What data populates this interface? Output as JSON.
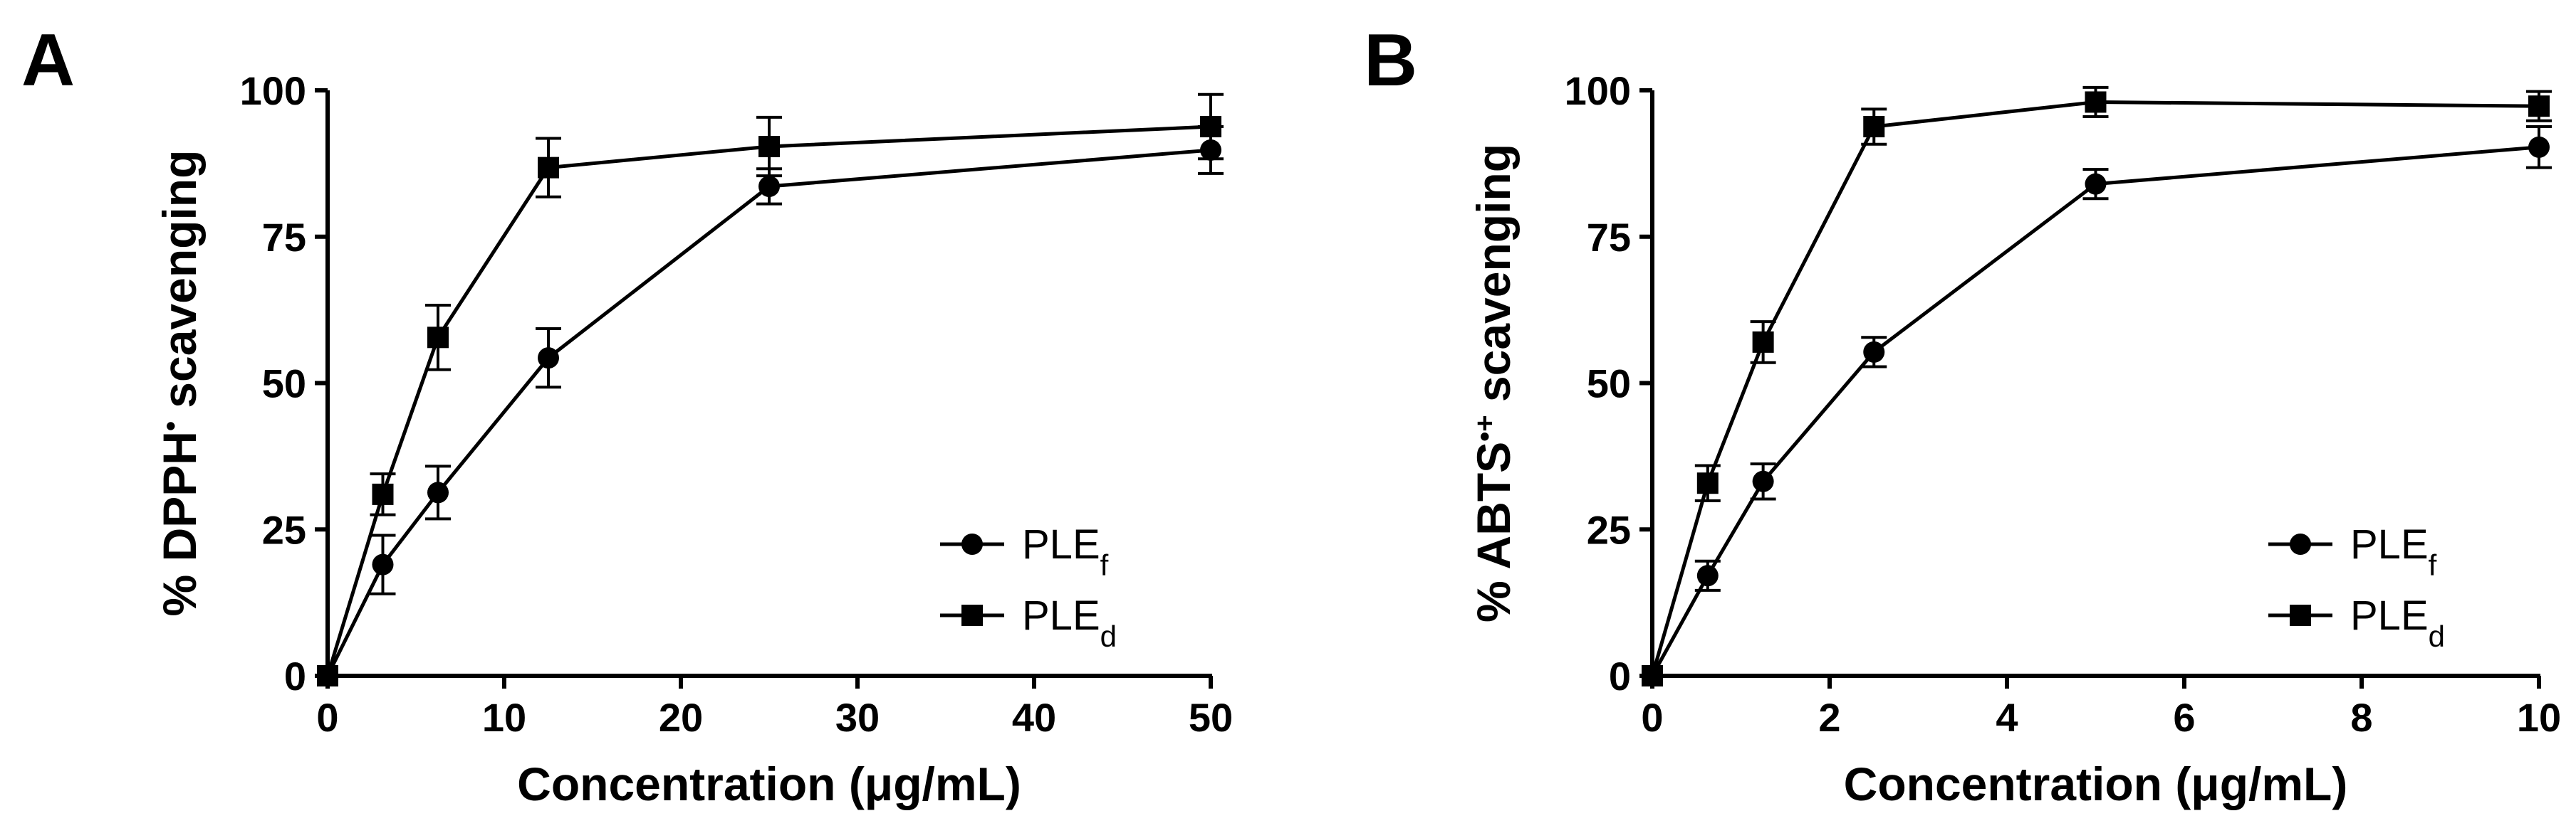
{
  "chart_data": [
    {
      "panel_label": "A",
      "type": "line",
      "xlabel": "Concentration (μg/mL)",
      "ylabel_main": "% DPPH",
      "ylabel_sup": "•",
      "ylabel_tail": " scavenging",
      "xlim": [
        0,
        50
      ],
      "ylim": [
        0,
        100
      ],
      "xticks": [
        0,
        10,
        20,
        30,
        40,
        50
      ],
      "yticks": [
        0,
        25,
        50,
        75,
        100
      ],
      "grid": false,
      "legend_position": "bottom-right",
      "series": [
        {
          "name": "PLEf",
          "name_base": "PLE",
          "name_sub": "f",
          "marker": "circle",
          "x": [
            0,
            3.125,
            6.25,
            12.5,
            25,
            50
          ],
          "y": [
            0,
            19,
            31.3,
            54.3,
            83.6,
            89.8
          ],
          "error": [
            0,
            5,
            4.5,
            5,
            3,
            4
          ]
        },
        {
          "name": "PLEd",
          "name_base": "PLE",
          "name_sub": "d",
          "marker": "square",
          "x": [
            0,
            3.125,
            6.25,
            12.5,
            25,
            50
          ],
          "y": [
            0,
            31,
            57.8,
            86.8,
            90.4,
            93.8
          ],
          "error": [
            0,
            3.5,
            5.5,
            5,
            5,
            5.5
          ]
        }
      ]
    },
    {
      "panel_label": "B",
      "type": "line",
      "xlabel": "Concentration (μg/mL)",
      "ylabel_main": "% ABTS",
      "ylabel_sup": "•+",
      "ylabel_tail": " scavenging",
      "xlim": [
        0,
        10
      ],
      "ylim": [
        0,
        100
      ],
      "xticks": [
        0,
        2,
        4,
        6,
        8,
        10
      ],
      "yticks": [
        0,
        25,
        50,
        75,
        100
      ],
      "grid": false,
      "legend_position": "bottom-right",
      "series": [
        {
          "name": "PLEf",
          "name_base": "PLE",
          "name_sub": "f",
          "marker": "circle",
          "x": [
            0,
            0.625,
            1.25,
            2.5,
            5,
            10
          ],
          "y": [
            0,
            17.1,
            33.2,
            55.3,
            84,
            90.3
          ],
          "error": [
            0,
            2.5,
            3,
            2.5,
            2.5,
            3.5
          ]
        },
        {
          "name": "PLEd",
          "name_base": "PLE",
          "name_sub": "d",
          "marker": "square",
          "x": [
            0,
            0.625,
            1.25,
            2.5,
            5,
            10
          ],
          "y": [
            0,
            32.9,
            57,
            93.8,
            98,
            97.3
          ],
          "error": [
            0,
            3,
            3.5,
            3,
            2.5,
            2.5
          ]
        }
      ]
    }
  ]
}
